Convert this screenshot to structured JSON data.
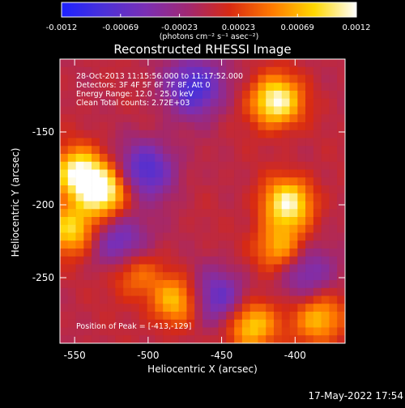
{
  "colors": {
    "background": "#000000",
    "text": "#ffffff",
    "colormap": [
      "#1d22ff",
      "#4b31d8",
      "#7b2fb4",
      "#a12872",
      "#d82a12",
      "#ff7a00",
      "#ffd800",
      "#ffffff"
    ]
  },
  "footer": {
    "timestamp": "17-May-2022 17:54"
  },
  "chart_data": {
    "type": "heatmap",
    "title": "Reconstructed RHESSI Image",
    "xlabel": "Heliocentric X (arcsec)",
    "ylabel": "Heliocentric Y (arcsec)",
    "xlim": [
      -560,
      -366
    ],
    "ylim": [
      -295,
      -100
    ],
    "xticks": [
      "-550",
      "-500",
      "-450",
      "-400"
    ],
    "yticks": [
      "-150",
      "-200",
      "-250"
    ],
    "colorbar": {
      "ticks": [
        "-0.0012",
        "-0.00069",
        "-0.00023",
        "0.00023",
        "0.00069",
        "0.0012"
      ],
      "label": "(photons cm⁻² s⁻¹ asec⁻²)",
      "range": [
        -0.0012,
        0.0012
      ]
    },
    "annotations": {
      "time": "28-Oct-2013 11:15:56.000 to 11:17:52.000",
      "detectors": "Detectors: 3F 4F 5F 6F 7F 8F, Att 0",
      "energy": "Energy Range: 12.0 - 25.0 keV",
      "clean": "Clean    Total counts: 2.72E+03",
      "peak": "Position of Peak = [-413,-129]"
    },
    "hotspots": [
      {
        "x": -531,
        "y": -191,
        "value": 0.0012
      },
      {
        "x": -548,
        "y": -178,
        "value": 0.0011
      },
      {
        "x": -552,
        "y": -217,
        "value": 0.0009
      },
      {
        "x": -510,
        "y": -246,
        "value": 0.0006
      },
      {
        "x": -413,
        "y": -129,
        "value": 0.0012
      },
      {
        "x": -405,
        "y": -199,
        "value": 0.0011
      },
      {
        "x": -410,
        "y": -230,
        "value": 0.0008
      },
      {
        "x": -481,
        "y": -266,
        "value": 0.0008
      },
      {
        "x": -430,
        "y": -283,
        "value": 0.0009
      },
      {
        "x": -384,
        "y": -278,
        "value": 0.0008
      }
    ],
    "coldspots": [
      {
        "x": -468,
        "y": -119,
        "value": -0.0009
      },
      {
        "x": -501,
        "y": -176,
        "value": -0.0008
      },
      {
        "x": -518,
        "y": -227,
        "value": -0.0007
      },
      {
        "x": -453,
        "y": -264,
        "value": -0.0007
      },
      {
        "x": -392,
        "y": -245,
        "value": -0.0006
      }
    ]
  }
}
